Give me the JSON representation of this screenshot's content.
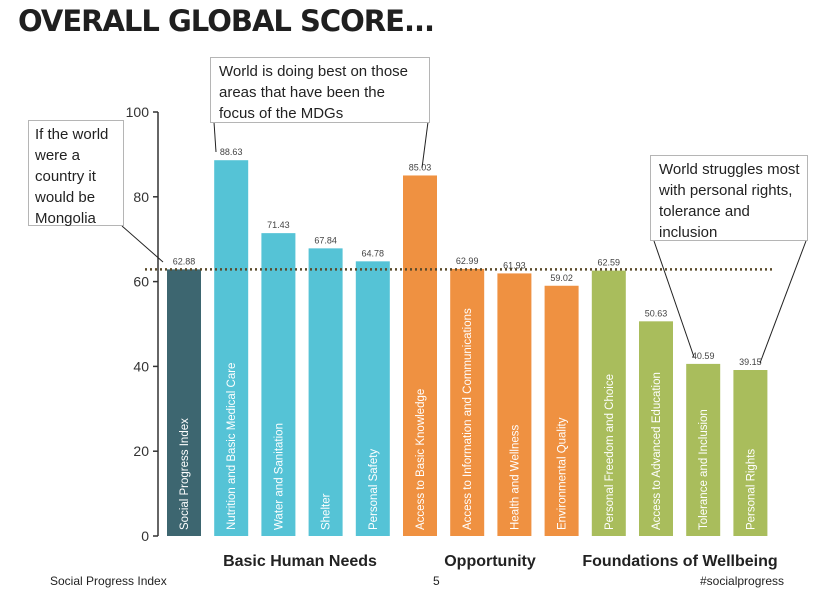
{
  "title": "OVERALL GLOBAL SCORE...",
  "chart_data": {
    "type": "bar",
    "ylim": [
      0,
      100
    ],
    "yticks": [
      0,
      20,
      40,
      60,
      80,
      100
    ],
    "reference_line": 62.88,
    "categories": [
      "Social Progress Index",
      "Nutrition and Basic Medical Care",
      "Water and Sanitation",
      "Shelter",
      "Personal Safety",
      "Access to Basic Knowledge",
      "Access to Information and Communications",
      "Health and Wellness",
      "Environmental Quality",
      "Personal Freedom and Choice",
      "Access to Advanced Education",
      "Tolerance and Inclusion",
      "Personal Rights"
    ],
    "values": [
      62.88,
      88.63,
      71.43,
      67.84,
      64.78,
      85.03,
      62.99,
      61.93,
      59.02,
      62.59,
      50.63,
      40.59,
      39.15
    ],
    "value_labels": [
      "62.88",
      "88.63",
      "71.43",
      "67.84",
      "64.78",
      "85.03",
      "62.99",
      "61.93",
      "59.02",
      "62.59",
      "50.63",
      "40.59",
      "39.15"
    ],
    "groups": [
      "Overall",
      "Basic Human Needs",
      "Basic Human Needs",
      "Basic Human Needs",
      "Basic Human Needs",
      "Opportunity",
      "Opportunity",
      "Opportunity",
      "Opportunity",
      "Foundations of Wellbeing",
      "Foundations of Wellbeing",
      "Foundations of Wellbeing",
      "Foundations of Wellbeing"
    ],
    "group_labels": [
      "Basic Human Needs",
      "Opportunity",
      "Foundations of Wellbeing"
    ],
    "colors": {
      "Overall": "#3d6670",
      "Basic Human Needs": "#55c3d6",
      "Opportunity": "#ef9141",
      "Foundations of Wellbeing": "#a9bd5c",
      "reference_line": "#5a4a2a"
    }
  },
  "callouts": {
    "mongolia": "If the world were a country it would be Mongolia",
    "mdgs": "World is doing best on those areas that have been the focus of the MDGs",
    "struggles": "World struggles most with personal rights, tolerance and inclusion"
  },
  "footer": {
    "left": "Social Progress Index",
    "page": "5",
    "right": "#socialprogress"
  }
}
